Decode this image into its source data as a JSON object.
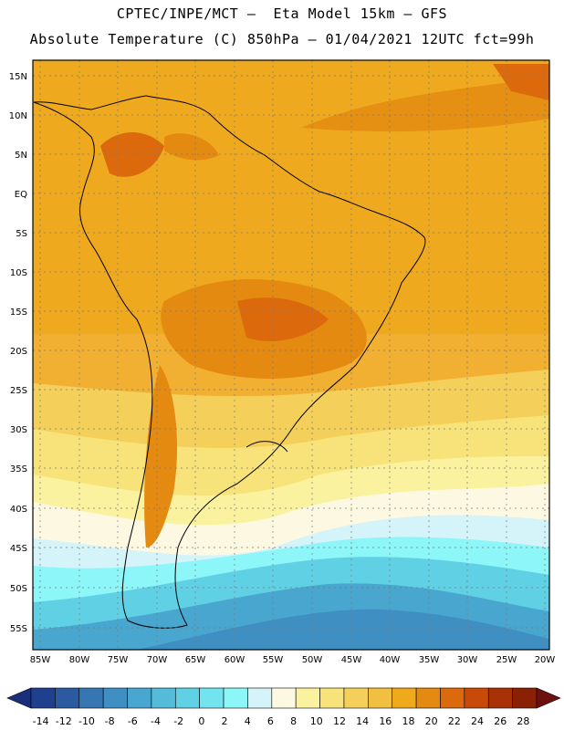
{
  "header": {
    "line1": "CPTEC/INPE/MCT –  Eta Model 15km – GFS",
    "line2": "Absolute Temperature (C) 850hPa – 01/04/2021 12UTC fct=99h"
  },
  "map": {
    "lat_labels": [
      "15N",
      "10N",
      "5N",
      "EQ",
      "5S",
      "10S",
      "15S",
      "20S",
      "25S",
      "30S",
      "35S",
      "40S",
      "45S",
      "50S",
      "55S"
    ],
    "lon_labels": [
      "85W",
      "80W",
      "75W",
      "70W",
      "65W",
      "60W",
      "55W",
      "50W",
      "45W",
      "40W",
      "35W",
      "30W",
      "25W",
      "20W"
    ],
    "grid": true,
    "region": "South America"
  },
  "colorbar": {
    "tick_labels": [
      "-14",
      "-12",
      "-10",
      "-8",
      "-6",
      "-4",
      "-2",
      "0",
      "2",
      "4",
      "6",
      "8",
      "10",
      "12",
      "14",
      "16",
      "18",
      "20",
      "22",
      "24",
      "26",
      "28"
    ],
    "colors": [
      "#1f3f8f",
      "#2b5aa0",
      "#3576b3",
      "#3f8fc2",
      "#48a6cf",
      "#54bcd9",
      "#60d0e4",
      "#72e4f0",
      "#8cf6f8",
      "#d4f4fa",
      "#fdf8e2",
      "#fbf2a0",
      "#f7e37a",
      "#f4d05a",
      "#f2c040",
      "#efaa1c",
      "#e48a10",
      "#dc6a0c",
      "#c84a08",
      "#a83206",
      "#8a2004"
    ]
  }
}
